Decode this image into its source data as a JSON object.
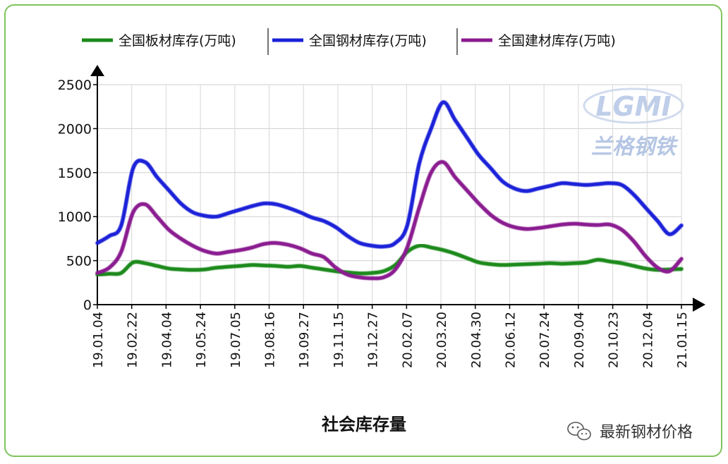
{
  "chart_data": {
    "type": "line",
    "title": "社会库存量",
    "xlabel": "",
    "ylabel": "",
    "ylim": [
      0,
      2500
    ],
    "y_ticks": [
      0,
      500,
      1000,
      1500,
      2000,
      2500
    ],
    "x_tick_labels": [
      "19.01.04",
      "19.02.22",
      "19.04.04",
      "19.05.24",
      "19.07.05",
      "19.08.16",
      "19.09.27",
      "19.11.15",
      "19.12.27",
      "20.02.07",
      "20.03.20",
      "20.04.30",
      "20.06.12",
      "20.07.24",
      "20.09.04",
      "20.10.23",
      "20.12.04",
      "21.01.15"
    ],
    "grid": true,
    "legend_position": "top",
    "series": [
      {
        "name": "全国板材库存(万吨)",
        "color": "#1a8a1a",
        "values": [
          340,
          350,
          360,
          480,
          470,
          440,
          410,
          400,
          395,
          400,
          420,
          430,
          440,
          450,
          445,
          440,
          430,
          440,
          420,
          400,
          380,
          365,
          355,
          360,
          380,
          450,
          600,
          670,
          650,
          620,
          580,
          530,
          480,
          460,
          450,
          455,
          460,
          465,
          470,
          465,
          470,
          480,
          510,
          490,
          470,
          440,
          410,
          395,
          400,
          405
        ]
      },
      {
        "name": "全国钢材库存(万吨)",
        "color": "#1a20d8",
        "values": [
          700,
          780,
          900,
          1550,
          1620,
          1450,
          1300,
          1150,
          1050,
          1010,
          1000,
          1040,
          1080,
          1120,
          1150,
          1140,
          1100,
          1050,
          990,
          950,
          880,
          780,
          700,
          670,
          660,
          700,
          900,
          1600,
          2000,
          2300,
          2100,
          1900,
          1700,
          1550,
          1400,
          1320,
          1290,
          1320,
          1350,
          1380,
          1370,
          1360,
          1370,
          1380,
          1360,
          1250,
          1100,
          950,
          800,
          900
        ]
      },
      {
        "name": "全国建材库存(万吨)",
        "color": "#8a1a90",
        "values": [
          360,
          420,
          600,
          1050,
          1140,
          1000,
          850,
          750,
          670,
          610,
          580,
          600,
          620,
          650,
          690,
          700,
          680,
          640,
          580,
          540,
          420,
          340,
          310,
          300,
          310,
          400,
          650,
          1100,
          1500,
          1620,
          1450,
          1300,
          1150,
          1020,
          930,
          880,
          860,
          870,
          890,
          910,
          920,
          910,
          905,
          910,
          850,
          720,
          550,
          420,
          380,
          520
        ]
      }
    ]
  },
  "watermark": {
    "logo_text": "LGMI",
    "brand_text": "兰格钢铁"
  },
  "wechat_label": "最新钢材价格"
}
